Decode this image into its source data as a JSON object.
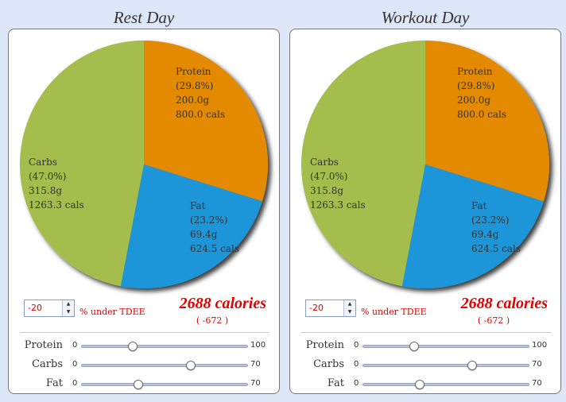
{
  "colors": {
    "protein": "#e48a00",
    "fat": "#1e96d8",
    "carbs": "#a5bd4d",
    "accent": "#e00000"
  },
  "days": [
    {
      "title": "Rest Day",
      "macros": [
        {
          "name": "Protein",
          "pct": 29.8,
          "pct_text": "(29.8%)",
          "grams": "200.0g",
          "cals": "800.0 cals"
        },
        {
          "name": "Fat",
          "pct": 23.2,
          "pct_text": "(23.2%)",
          "grams": "69.4g",
          "cals": "624.5 cals"
        },
        {
          "name": "Carbs",
          "pct": 47.0,
          "pct_text": "(47.0%)",
          "grams": "315.8g",
          "cals": "1263.3 cals"
        }
      ],
      "tdee_value": "-20",
      "tdee_label": "% under TDEE",
      "calories": "2688 calories",
      "calories_diff": "( -672 )",
      "sliders": [
        {
          "name": "Protein",
          "min": "0",
          "max": "100",
          "value_fraction": 0.31
        },
        {
          "name": "Carbs",
          "min": "0",
          "max": "70",
          "value_fraction": 0.66
        },
        {
          "name": "Fat",
          "min": "0",
          "max": "70",
          "value_fraction": 0.34
        }
      ]
    },
    {
      "title": "Workout Day",
      "macros": [
        {
          "name": "Protein",
          "pct": 29.8,
          "pct_text": "(29.8%)",
          "grams": "200.0g",
          "cals": "800.0 cals"
        },
        {
          "name": "Fat",
          "pct": 23.2,
          "pct_text": "(23.2%)",
          "grams": "69.4g",
          "cals": "624.5 cals"
        },
        {
          "name": "Carbs",
          "pct": 47.0,
          "pct_text": "(47.0%)",
          "grams": "315.8g",
          "cals": "1263.3 cals"
        }
      ],
      "tdee_value": "-20",
      "tdee_label": "% under TDEE",
      "calories": "2688 calories",
      "calories_diff": "( -672 )",
      "sliders": [
        {
          "name": "Protein",
          "min": "0",
          "max": "100",
          "value_fraction": 0.31
        },
        {
          "name": "Carbs",
          "min": "0",
          "max": "70",
          "value_fraction": 0.66
        },
        {
          "name": "Fat",
          "min": "0",
          "max": "70",
          "value_fraction": 0.34
        }
      ]
    }
  ]
}
